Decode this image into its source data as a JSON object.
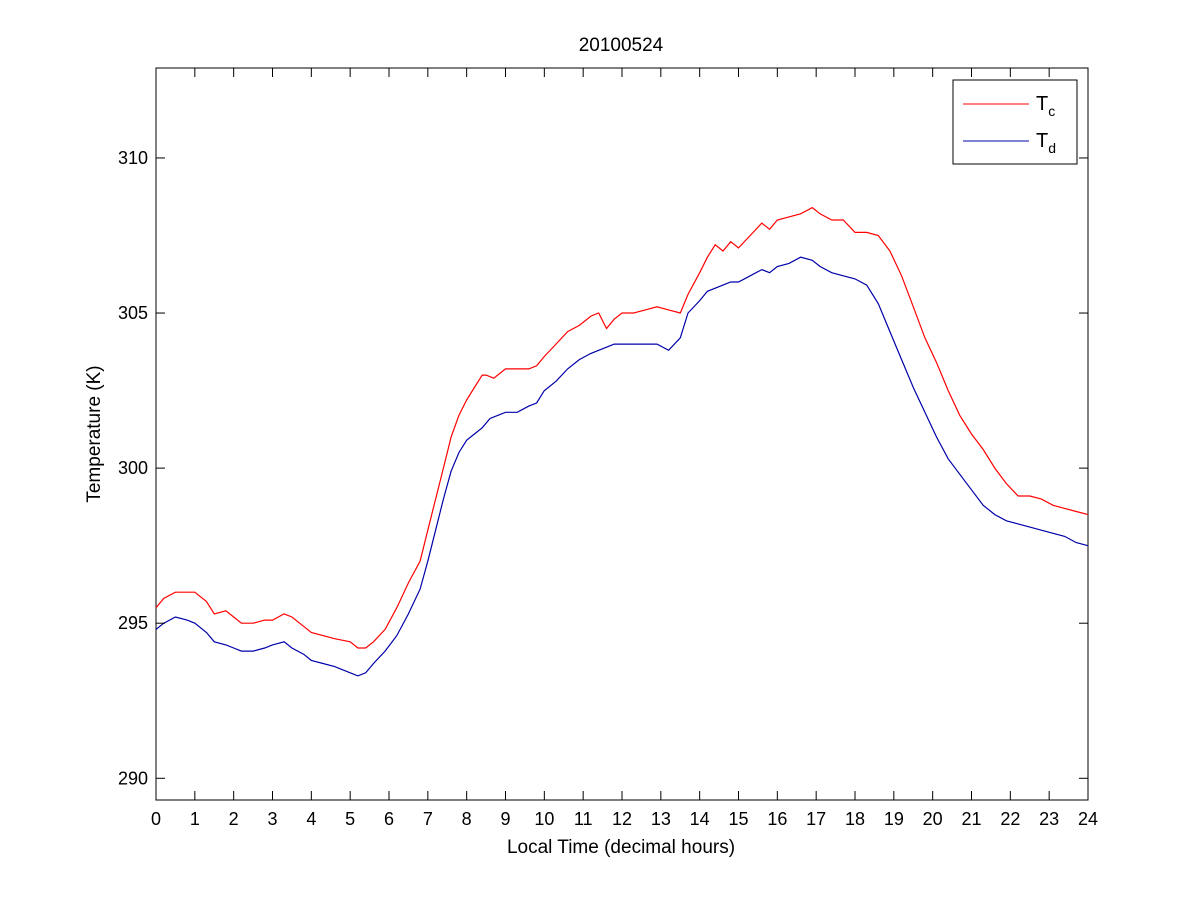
{
  "chart_data": {
    "type": "line",
    "title": "20100524",
    "xlabel": "Local Time (decimal hours)",
    "ylabel": "Temperature (K)",
    "xlim": [
      0,
      24
    ],
    "ylim": [
      289.3,
      312.9
    ],
    "xticks": [
      "0",
      "1",
      "2",
      "3",
      "4",
      "5",
      "6",
      "7",
      "8",
      "9",
      "10",
      "11",
      "12",
      "13",
      "14",
      "15",
      "16",
      "17",
      "18",
      "19",
      "20",
      "21",
      "22",
      "23",
      "24"
    ],
    "yticks": [
      "290",
      "295",
      "300",
      "305",
      "310"
    ],
    "grid": false,
    "legend_position": "top-right",
    "colors": {
      "Tc": "#ff0000",
      "Td": "#0000aa"
    },
    "series": [
      {
        "name": "T",
        "subscript": "c",
        "color": "#ff0000",
        "x": [
          0,
          0.2,
          0.5,
          1.0,
          1.3,
          1.5,
          1.8,
          2.0,
          2.2,
          2.5,
          2.8,
          3.0,
          3.3,
          3.5,
          3.8,
          4.0,
          4.3,
          4.6,
          5.0,
          5.2,
          5.4,
          5.6,
          5.9,
          6.2,
          6.5,
          6.8,
          7.0,
          7.2,
          7.4,
          7.6,
          7.8,
          8.0,
          8.2,
          8.4,
          8.5,
          8.7,
          9.0,
          9.3,
          9.6,
          9.8,
          10.0,
          10.3,
          10.6,
          10.9,
          11.2,
          11.4,
          11.6,
          11.8,
          12.0,
          12.3,
          12.6,
          12.9,
          13.2,
          13.5,
          13.7,
          14.0,
          14.2,
          14.4,
          14.6,
          14.8,
          15.0,
          15.3,
          15.6,
          15.8,
          16.0,
          16.3,
          16.6,
          16.9,
          17.1,
          17.4,
          17.7,
          18.0,
          18.3,
          18.6,
          18.9,
          19.2,
          19.5,
          19.8,
          20.1,
          20.4,
          20.7,
          21.0,
          21.3,
          21.6,
          21.9,
          22.2,
          22.5,
          22.8,
          23.1,
          23.4,
          23.7,
          24.0
        ],
        "values": [
          295.5,
          295.8,
          296.0,
          296.0,
          295.7,
          295.3,
          295.4,
          295.2,
          295.0,
          295.0,
          295.1,
          295.1,
          295.3,
          295.2,
          294.9,
          294.7,
          294.6,
          294.5,
          294.4,
          294.2,
          294.2,
          294.4,
          294.8,
          295.5,
          296.3,
          297.0,
          298.0,
          299.0,
          300.0,
          301.0,
          301.7,
          302.2,
          302.6,
          303.0,
          303.0,
          302.9,
          303.2,
          303.2,
          303.2,
          303.3,
          303.6,
          304.0,
          304.4,
          304.6,
          304.9,
          305.0,
          304.5,
          304.8,
          305.0,
          305.0,
          305.1,
          305.2,
          305.1,
          305.0,
          305.6,
          306.3,
          306.8,
          307.2,
          307.0,
          307.3,
          307.1,
          307.5,
          307.9,
          307.7,
          308.0,
          308.1,
          308.2,
          308.4,
          308.2,
          308.0,
          308.0,
          307.6,
          307.6,
          307.5,
          307.0,
          306.2,
          305.2,
          304.2,
          303.4,
          302.5,
          301.7,
          301.1,
          300.6,
          300.0,
          299.5,
          299.1,
          299.1,
          299.0,
          298.8,
          298.7,
          298.6,
          298.5
        ]
      },
      {
        "name": "T",
        "subscript": "d",
        "color": "#0000aa",
        "x": [
          0,
          0.2,
          0.5,
          0.8,
          1.0,
          1.3,
          1.5,
          1.8,
          2.0,
          2.2,
          2.5,
          2.8,
          3.0,
          3.3,
          3.5,
          3.8,
          4.0,
          4.3,
          4.6,
          5.0,
          5.2,
          5.4,
          5.6,
          5.9,
          6.2,
          6.5,
          6.8,
          7.0,
          7.2,
          7.4,
          7.6,
          7.8,
          8.0,
          8.2,
          8.4,
          8.6,
          8.8,
          9.0,
          9.3,
          9.6,
          9.8,
          10.0,
          10.3,
          10.6,
          10.9,
          11.2,
          11.4,
          11.6,
          11.8,
          12.0,
          12.3,
          12.6,
          12.9,
          13.2,
          13.5,
          13.7,
          14.0,
          14.2,
          14.4,
          14.6,
          14.8,
          15.0,
          15.3,
          15.6,
          15.8,
          16.0,
          16.3,
          16.6,
          16.9,
          17.1,
          17.4,
          17.7,
          18.0,
          18.3,
          18.6,
          18.9,
          19.2,
          19.5,
          19.8,
          20.1,
          20.4,
          20.7,
          21.0,
          21.3,
          21.6,
          21.9,
          22.2,
          22.5,
          22.8,
          23.1,
          23.4,
          23.7,
          24.0
        ],
        "values": [
          294.8,
          295.0,
          295.2,
          295.1,
          295.0,
          294.7,
          294.4,
          294.3,
          294.2,
          294.1,
          294.1,
          294.2,
          294.3,
          294.4,
          294.2,
          294.0,
          293.8,
          293.7,
          293.6,
          293.4,
          293.3,
          293.4,
          293.7,
          294.1,
          294.6,
          295.3,
          296.1,
          297.0,
          298.0,
          299.0,
          299.9,
          300.5,
          300.9,
          301.1,
          301.3,
          301.6,
          301.7,
          301.8,
          301.8,
          302.0,
          302.1,
          302.5,
          302.8,
          303.2,
          303.5,
          303.7,
          303.8,
          303.9,
          304.0,
          304.0,
          304.0,
          304.0,
          304.0,
          303.8,
          304.2,
          305.0,
          305.4,
          305.7,
          305.8,
          305.9,
          306.0,
          306.0,
          306.2,
          306.4,
          306.3,
          306.5,
          306.6,
          306.8,
          306.7,
          306.5,
          306.3,
          306.2,
          306.1,
          305.9,
          305.3,
          304.4,
          303.5,
          302.6,
          301.8,
          301.0,
          300.3,
          299.8,
          299.3,
          298.8,
          298.5,
          298.3,
          298.2,
          298.1,
          298.0,
          297.9,
          297.8,
          297.6,
          297.5
        ]
      }
    ]
  }
}
